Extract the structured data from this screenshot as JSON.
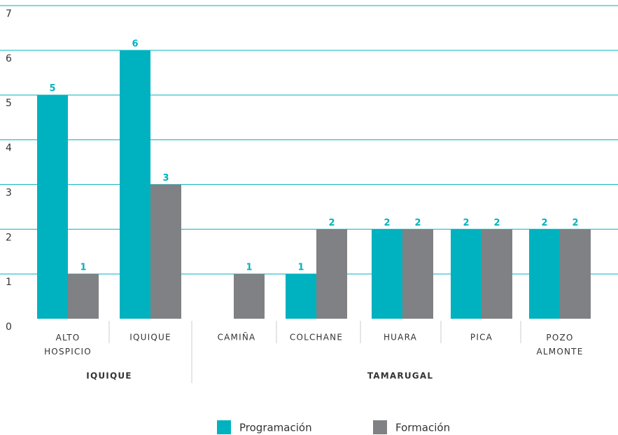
{
  "chart_data": {
    "type": "bar",
    "categories": [
      "ALTO HOSPICIO",
      "IQUIQUE",
      "CAMIÑA",
      "COLCHANE",
      "HUARA",
      "PICA",
      "POZO ALMONTE"
    ],
    "groups": [
      "IQUIQUE",
      "TAMARUGAL"
    ],
    "series": [
      {
        "name": "Programación",
        "color": "#00b2bf",
        "values": [
          5,
          6,
          0,
          1,
          2,
          2,
          2
        ]
      },
      {
        "name": "Formación",
        "color": "#808184",
        "values": [
          1,
          3,
          1,
          2,
          2,
          2,
          2
        ]
      }
    ],
    "ylim": [
      0,
      7
    ],
    "yticks": [
      0,
      1,
      2,
      3,
      4,
      5,
      6,
      7
    ],
    "grid": true,
    "legend": "bottom"
  }
}
